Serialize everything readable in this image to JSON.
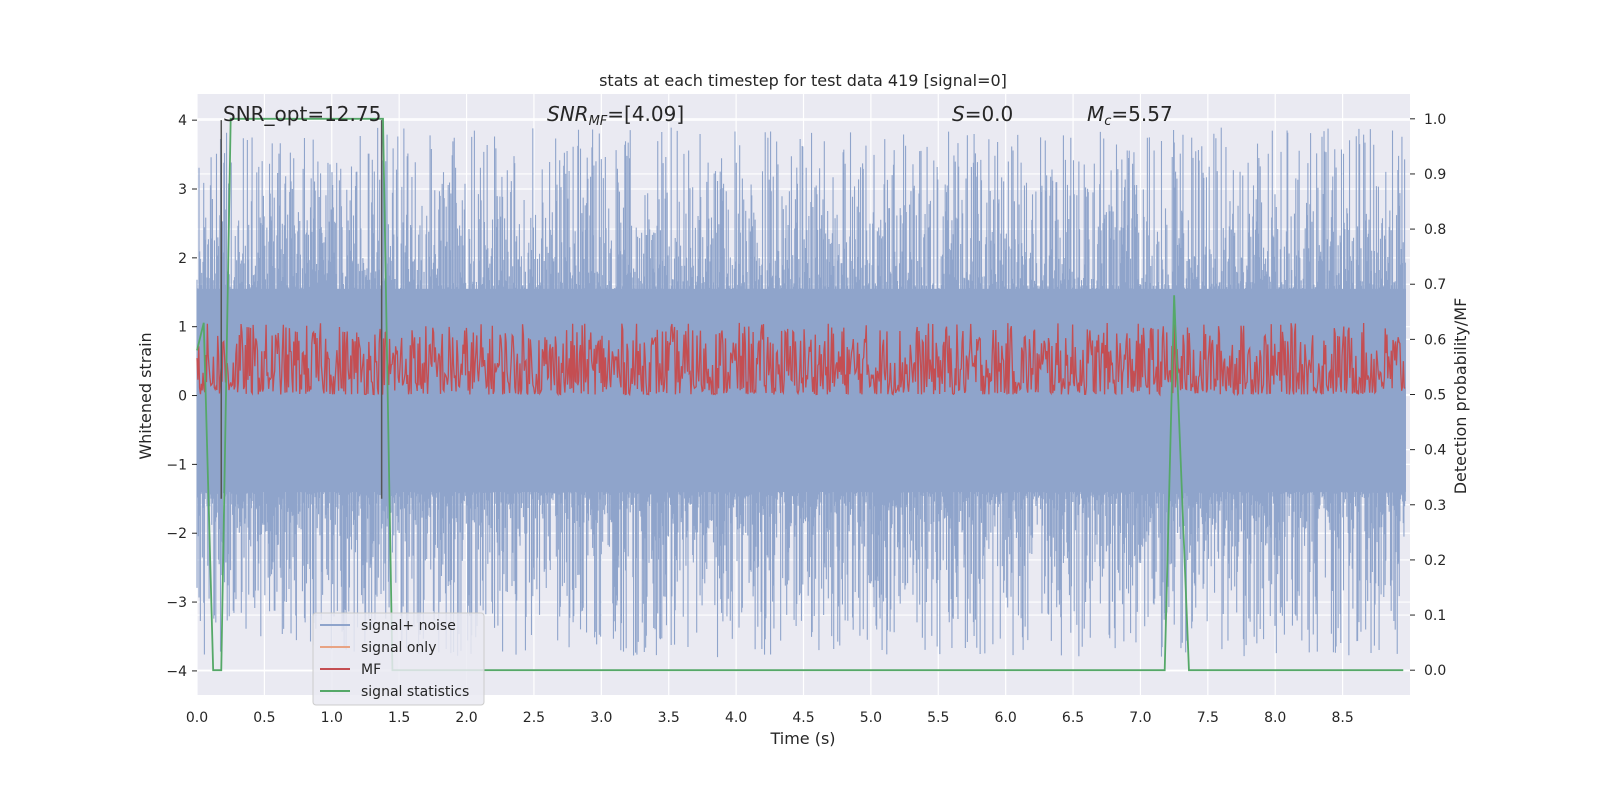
{
  "chart_data": {
    "type": "line",
    "title": "stats at each timestep for test data 419 [signal=0]",
    "xlabel": "Time (s)",
    "ylabel_left": "Whitened strain",
    "ylabel_right": "Detection probability/MF",
    "xlim": [
      0.0,
      9.0
    ],
    "ylim_left": [
      -4.35,
      4.38
    ],
    "ylim_right": [
      -0.045,
      1.045
    ],
    "x_ticks": [
      0.0,
      0.5,
      1.0,
      1.5,
      2.0,
      2.5,
      3.0,
      3.5,
      4.0,
      4.5,
      5.0,
      5.5,
      6.0,
      6.5,
      7.0,
      7.5,
      8.0,
      8.5
    ],
    "x_tick_labels": [
      "0.0",
      "0.5",
      "1.0",
      "1.5",
      "2.0",
      "2.5",
      "3.0",
      "3.5",
      "4.0",
      "4.5",
      "5.0",
      "5.5",
      "6.0",
      "6.5",
      "7.0",
      "7.5",
      "8.0",
      "8.5"
    ],
    "y_ticks_left": [
      4,
      3,
      2,
      1,
      0,
      -1,
      -2,
      -3,
      -4
    ],
    "y_tick_labels_left": [
      "4",
      "3",
      "2",
      "1",
      "0",
      "−1",
      "−2",
      "−3",
      "−4"
    ],
    "y_ticks_right": [
      1.0,
      0.9,
      0.8,
      0.7,
      0.6,
      0.5,
      0.4,
      0.3,
      0.2,
      0.1,
      0.0
    ],
    "y_tick_labels_right": [
      "1.0",
      "0.9",
      "0.8",
      "0.7",
      "0.6",
      "0.5",
      "0.4",
      "0.3",
      "0.2",
      "0.1",
      "0.0"
    ],
    "grid": true,
    "annotations": [
      {
        "id": "snr-opt",
        "text": "SNR_opt=12.75"
      },
      {
        "id": "snr-mf",
        "text": "SNR_MF=[4.09]"
      },
      {
        "id": "s",
        "text": "S=0.0"
      },
      {
        "id": "mc",
        "text": "M_c=5.57"
      }
    ],
    "legend_position": "lower-left",
    "series": [
      {
        "name": "signal+ noise",
        "axis": "left",
        "color": "#8fa4cb",
        "description": "whitened noisy strain, roughly in [-3.8, 3.9]",
        "amplitude_range": [
          -3.8,
          3.9
        ]
      },
      {
        "name": "signal only",
        "axis": "left",
        "color": "#e8a383",
        "values": []
      },
      {
        "name": "MF",
        "axis": "right",
        "color": "#c44e52",
        "description": "matched-filter output fluctuating around 0.55",
        "range": [
          0.5,
          0.63
        ]
      },
      {
        "name": "signal statistics",
        "axis": "right",
        "color": "#55a868",
        "x": [
          0.0,
          0.05,
          0.12,
          0.18,
          0.25,
          1.38,
          1.45,
          7.18,
          7.25,
          7.36,
          8.95
        ],
        "values": [
          0.58,
          0.63,
          0.0,
          0.0,
          1.0,
          1.0,
          0.0,
          0.0,
          0.68,
          0.0,
          0.0
        ]
      }
    ],
    "markers": [
      {
        "name": "event-marker-start",
        "x": 0.18,
        "color": "#555555"
      },
      {
        "name": "event-marker-end",
        "x": 1.37,
        "color": "#555555"
      }
    ]
  }
}
